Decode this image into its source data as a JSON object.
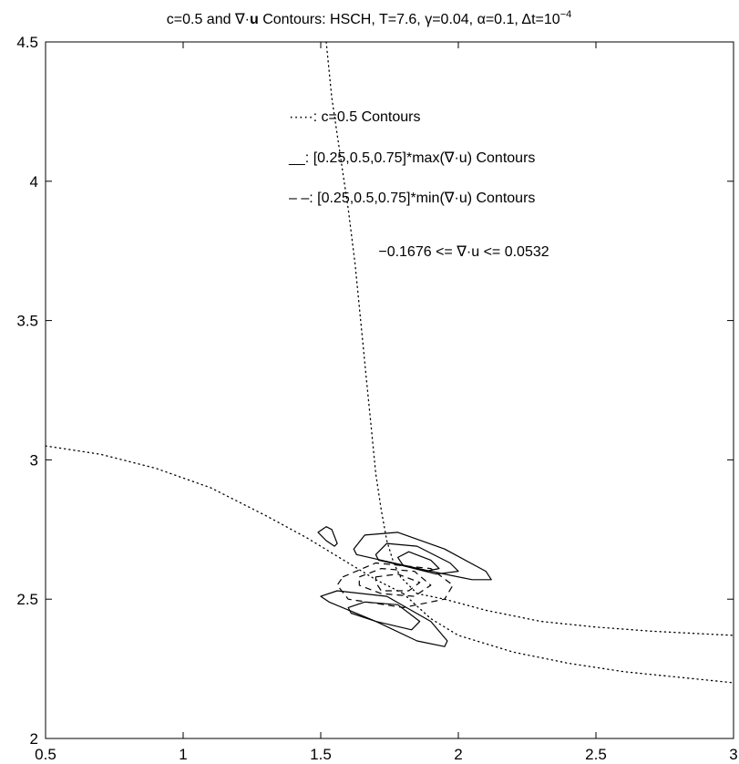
{
  "chart_data": {
    "type": "line",
    "title": {
      "prefix": "c=0.5 and ∇·",
      "bold": "u",
      "main": " Contours: HSCH, T=7.6, γ=0.04, α=0.1, Δt=10",
      "superscript": "−4"
    },
    "xlabel": "",
    "ylabel": "",
    "xlim": [
      0.5,
      3
    ],
    "ylim": [
      2,
      4.5
    ],
    "xticks": [
      0.5,
      1,
      1.5,
      2,
      2.5,
      3
    ],
    "xtick_labels": [
      "0.5",
      "1",
      "1.5",
      "2",
      "2.5",
      "3"
    ],
    "yticks": [
      2,
      2.5,
      3,
      3.5,
      4,
      4.5
    ],
    "ytick_labels": [
      "2",
      "2.5",
      "3",
      "3.5",
      "4",
      "4.5"
    ],
    "grid": false,
    "legend": {
      "placement": "top-right",
      "entries": [
        {
          "symbol": "·····",
          "text": ": c=0.5 Contours",
          "style": "dotted"
        },
        {
          "symbol": "__",
          "text": ": [0.25,0.5,0.75]*max(∇·u) Contours",
          "style": "solid"
        },
        {
          "symbol": "– –",
          "text": ": [0.25,0.5,0.75]*min(∇·u) Contours",
          "style": "dashed"
        }
      ],
      "range_note": "−0.1676 <= ∇·u <= 0.0532"
    },
    "series": [
      {
        "style": "dotted",
        "x": [
          1.52,
          1.54,
          1.57,
          1.6,
          1.625,
          1.645,
          1.665,
          1.685,
          1.7,
          1.72,
          1.74,
          1.765,
          1.79,
          1.82,
          1.85
        ],
        "y": [
          4.5,
          4.3,
          4.1,
          3.9,
          3.7,
          3.5,
          3.3,
          3.1,
          2.95,
          2.82,
          2.71,
          2.63,
          2.58,
          2.55,
          2.52
        ]
      },
      {
        "style": "dotted",
        "x": [
          1.85,
          1.95,
          2.1,
          2.3,
          2.5,
          2.7,
          2.9,
          3.0
        ],
        "y": [
          2.52,
          2.5,
          2.46,
          2.42,
          2.4,
          2.385,
          2.375,
          2.37
        ]
      },
      {
        "style": "dotted",
        "x": [
          0.5,
          0.7,
          0.9,
          1.1,
          1.3,
          1.45,
          1.6,
          1.7,
          1.8
        ],
        "y": [
          3.05,
          3.02,
          2.97,
          2.9,
          2.8,
          2.72,
          2.63,
          2.57,
          2.52
        ]
      },
      {
        "style": "dotted",
        "x": [
          1.8,
          1.9,
          2.0,
          2.2,
          2.4,
          2.6,
          2.8,
          3.0
        ],
        "y": [
          2.52,
          2.43,
          2.37,
          2.31,
          2.27,
          2.24,
          2.22,
          2.2
        ]
      },
      {
        "style": "solid",
        "closed": true,
        "x": [
          1.62,
          1.66,
          1.78,
          1.95,
          2.1,
          2.12,
          2.05,
          1.9,
          1.72,
          1.63
        ],
        "y": [
          2.68,
          2.73,
          2.74,
          2.68,
          2.6,
          2.57,
          2.57,
          2.6,
          2.64,
          2.66
        ]
      },
      {
        "style": "solid",
        "closed": true,
        "x": [
          1.7,
          1.74,
          1.85,
          1.97,
          2.0,
          1.92,
          1.8,
          1.71
        ],
        "y": [
          2.66,
          2.7,
          2.69,
          2.63,
          2.6,
          2.59,
          2.62,
          2.64
        ]
      },
      {
        "style": "solid",
        "closed": true,
        "x": [
          1.78,
          1.82,
          1.9,
          1.93,
          1.88,
          1.8
        ],
        "y": [
          2.65,
          2.67,
          2.64,
          2.61,
          2.6,
          2.62
        ]
      },
      {
        "style": "solid",
        "closed": true,
        "x": [
          1.5,
          1.56,
          1.74,
          1.9,
          1.96,
          1.95,
          1.85,
          1.7,
          1.53
        ],
        "y": [
          2.51,
          2.53,
          2.51,
          2.42,
          2.35,
          2.33,
          2.35,
          2.42,
          2.49
        ]
      },
      {
        "style": "solid",
        "closed": true,
        "x": [
          1.6,
          1.66,
          1.78,
          1.86,
          1.83,
          1.7,
          1.61
        ],
        "y": [
          2.47,
          2.49,
          2.48,
          2.42,
          2.39,
          2.42,
          2.45
        ]
      },
      {
        "style": "solid",
        "closed": true,
        "x": [
          1.49,
          1.52,
          1.54,
          1.56,
          1.55,
          1.52,
          1.5
        ],
        "y": [
          2.74,
          2.76,
          2.75,
          2.7,
          2.69,
          2.71,
          2.73
        ]
      },
      {
        "style": "dashed",
        "closed": true,
        "x": [
          1.64,
          1.72,
          1.84,
          1.9,
          1.84,
          1.72,
          1.64
        ],
        "y": [
          2.58,
          2.61,
          2.6,
          2.55,
          2.51,
          2.52,
          2.55
        ]
      },
      {
        "style": "dashed",
        "closed": true,
        "x": [
          1.7,
          1.78,
          1.86,
          1.82,
          1.72,
          1.7
        ],
        "y": [
          2.58,
          2.59,
          2.56,
          2.53,
          2.53,
          2.56
        ]
      },
      {
        "style": "dashed",
        "closed": true,
        "x": [
          1.58,
          1.7,
          1.9,
          1.98,
          1.95,
          1.8,
          1.6,
          1.56
        ],
        "y": [
          2.58,
          2.63,
          2.61,
          2.55,
          2.5,
          2.47,
          2.5,
          2.55
        ]
      }
    ]
  }
}
